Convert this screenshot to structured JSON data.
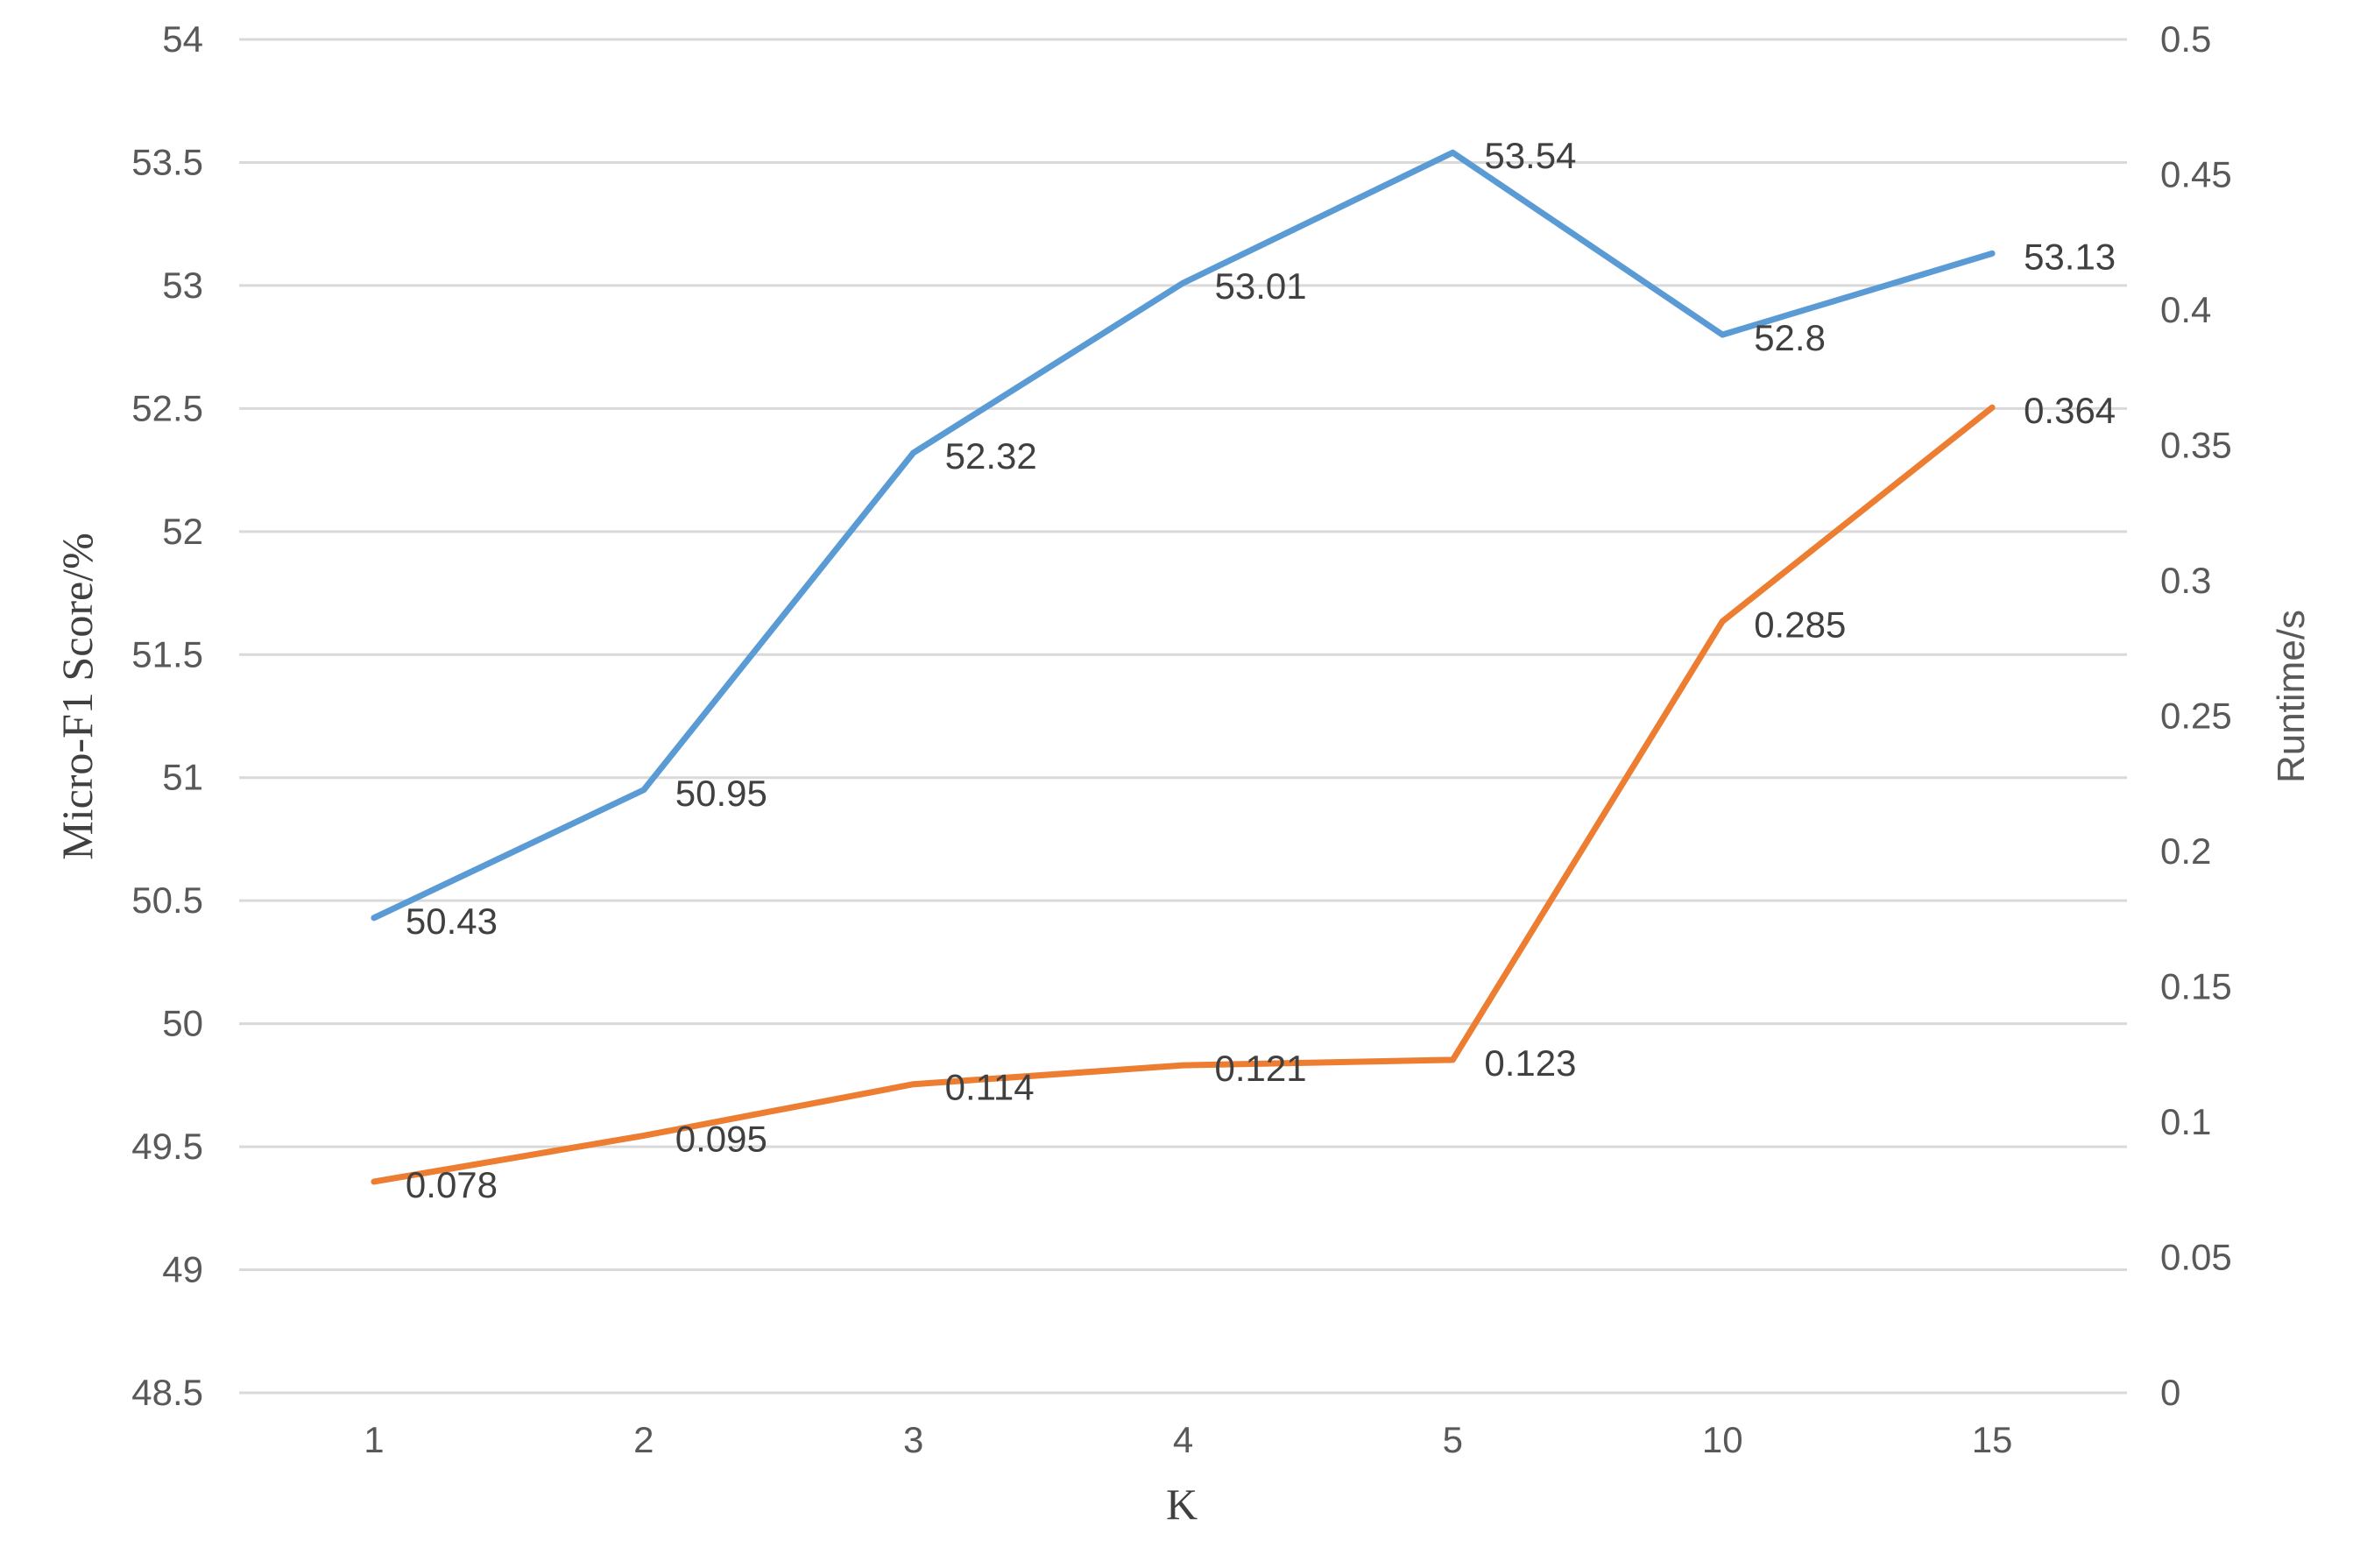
{
  "chart_data": {
    "type": "line",
    "title": "",
    "xlabel": "K",
    "ylabel": "Micro-F1 Score/%",
    "y2label": "Runtime/s",
    "categories": [
      "1",
      "2",
      "3",
      "4",
      "5",
      "10",
      "15"
    ],
    "ylim": [
      48.5,
      54
    ],
    "y2lim": [
      0,
      0.5
    ],
    "yticks": [
      "48.5",
      "49",
      "49.5",
      "50",
      "50.5",
      "51",
      "51.5",
      "52",
      "52.5",
      "53",
      "53.5",
      "54"
    ],
    "y2ticks": [
      "0",
      "0.05",
      "0.1",
      "0.15",
      "0.2",
      "0.25",
      "0.3",
      "0.35",
      "0.4",
      "0.45",
      "0.5"
    ],
    "grid": true,
    "legend": "none",
    "series": [
      {
        "axis": "left",
        "color": "#5b9bd5",
        "values": [
          50.43,
          50.95,
          52.32,
          53.01,
          53.54,
          52.8,
          53.13
        ],
        "labels": [
          "50.43",
          "50.95",
          "52.32",
          "53.01",
          "53.54",
          "52.8",
          "53.13"
        ]
      },
      {
        "axis": "right",
        "color": "#ed7d31",
        "values": [
          0.078,
          0.095,
          0.114,
          0.121,
          0.123,
          0.285,
          0.364
        ],
        "labels": [
          "0.078",
          "0.095",
          "0.114",
          "0.121",
          "0.123",
          "0.285",
          "0.364"
        ]
      }
    ]
  }
}
